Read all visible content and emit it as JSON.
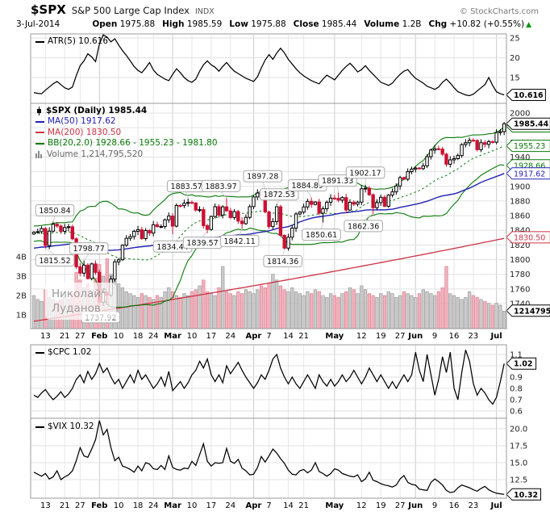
{
  "header": {
    "symbol": "$SPX",
    "name": "S&P 500 Large Cap Index",
    "exchange": "INDX",
    "copyright": "© StockCharts.com",
    "date": "3-Jul-2014",
    "quote": {
      "open_label": "Open",
      "open": "1975.88",
      "high_label": "High",
      "high": "1985.59",
      "low_label": "Low",
      "low": "1975.88",
      "close_label": "Close",
      "close": "1985.44",
      "volume_label": "Volume",
      "volume": "1.2B",
      "chg_label": "Chg",
      "chg": "+10.82 (+0.55%)",
      "arrow": "▲"
    }
  },
  "legend": {
    "atr": "ATR(5) 10.616",
    "spx": "$SPX (Daily) 1985.44",
    "ma50": "MA(50) 1917.62",
    "ma200": "MA(200) 1830.50",
    "bb": "BB(20,2.0) 1928.66 - 1955.23 - 1981.80",
    "volume": "Volume 1,214,795,520",
    "cpc": "$CPC 1.02",
    "vix": "$VIX 10.32"
  },
  "watermark": {
    "line1": "Николай",
    "sup": "©",
    "line2": "Луданов"
  },
  "colors": {
    "text": "#000000",
    "up": "#000000",
    "up_fill": "#ffffff",
    "down": "#cc1133",
    "ma50": "#2121b4",
    "ma200": "#cc3344",
    "bb": "#0a7a0a",
    "volume_up": "#cbcbcb",
    "volume_up_border": "#9e9e9e",
    "volume_down": "#f2b0ba",
    "volume_down_border": "#dd8899",
    "grid": "#e7e7e7",
    "grid_month": "#cccccc",
    "border": "#999999",
    "legend_volume": "#666666",
    "watermark": "#9a9a9a",
    "chg_arrow": "#009900"
  },
  "xticks": [
    {
      "label": "13",
      "i": 3
    },
    {
      "label": "21",
      "i": 8
    },
    {
      "label": "27",
      "i": 12
    },
    {
      "label": "Feb",
      "i": 17,
      "bold": true
    },
    {
      "label": "10",
      "i": 22
    },
    {
      "label": "18",
      "i": 27
    },
    {
      "label": "24",
      "i": 31
    },
    {
      "label": "Mar",
      "i": 36,
      "bold": true
    },
    {
      "label": "10",
      "i": 41
    },
    {
      "label": "17",
      "i": 46
    },
    {
      "label": "24",
      "i": 51
    },
    {
      "label": "Apr",
      "i": 57,
      "bold": true
    },
    {
      "label": "7",
      "i": 61
    },
    {
      "label": "14",
      "i": 66
    },
    {
      "label": "21",
      "i": 70
    },
    {
      "label": "May",
      "i": 78,
      "bold": true
    },
    {
      "label": "12",
      "i": 85
    },
    {
      "label": "19",
      "i": 90
    },
    {
      "label": "27",
      "i": 95
    },
    {
      "label": "Jun",
      "i": 99,
      "bold": true
    },
    {
      "label": "9",
      "i": 104
    },
    {
      "label": "16",
      "i": 109
    },
    {
      "label": "23",
      "i": 114
    },
    {
      "label": "Jul",
      "i": 120,
      "bold": true
    }
  ],
  "chart_data": [
    {
      "panel": "ATR",
      "type": "line",
      "title": "ATR(5)",
      "last": 10.616,
      "yticks": [
        15,
        20,
        25
      ],
      "ylim": [
        8.5,
        26.3
      ],
      "legend_position": "top-left",
      "values": [
        11.2,
        11.0,
        10.9,
        11.8,
        12.6,
        13.4,
        14.0,
        13.2,
        12.4,
        12.0,
        12.6,
        15.5,
        18.0,
        19.2,
        21.0,
        20.2,
        19.0,
        23.5,
        26.3,
        25.2,
        24.0,
        24.8,
        23.2,
        21.8,
        20.6,
        19.2,
        17.8,
        16.8,
        16.2,
        17.4,
        18.8,
        16.9,
        15.8,
        15.2,
        14.6,
        14.2,
        15.8,
        17.2,
        16.2,
        15.0,
        14.2,
        13.8,
        14.6,
        16.6,
        18.2,
        19.2,
        18.2,
        17.6,
        16.6,
        17.8,
        18.8,
        17.6,
        16.6,
        16.0,
        15.4,
        14.8,
        14.4,
        14.0,
        15.2,
        17.4,
        19.4,
        20.8,
        19.6,
        21.2,
        22.4,
        21.2,
        19.6,
        18.4,
        17.2,
        16.2,
        15.4,
        14.8,
        14.2,
        13.8,
        13.4,
        14.6,
        15.6,
        15.0,
        14.4,
        15.6,
        16.8,
        17.8,
        18.6,
        17.6,
        16.4,
        17.0,
        18.0,
        16.8,
        15.8,
        14.8,
        13.8,
        13.4,
        13.0,
        13.6,
        14.8,
        15.8,
        16.6,
        17.0,
        15.8,
        14.8,
        14.2,
        13.6,
        12.8,
        12.4,
        12.0,
        12.6,
        13.8,
        14.6,
        13.6,
        12.4,
        11.4,
        11.0,
        10.6,
        10.4,
        10.8,
        11.6,
        12.4,
        13.2,
        15.0,
        13.0,
        11.4,
        10.9,
        10.616
      ]
    },
    {
      "panel": "$SPX Daily",
      "type": "candlestick",
      "title": "$SPX (Daily)",
      "last": 1985.44,
      "yticks": [
        1740,
        1760,
        1780,
        1800,
        1820,
        1840,
        1860,
        1880,
        1900,
        1920,
        1940,
        1960,
        1980,
        2000
      ],
      "ylim": [
        1706,
        2013
      ],
      "closes": [
        1837.49,
        1838.13,
        1842.37,
        1819.2,
        1838.88,
        1848.38,
        1845.89,
        1838.7,
        1843.8,
        1844.86,
        1828.46,
        1790.29,
        1781.56,
        1792.5,
        1774.2,
        1794.19,
        1782.59,
        1741.89,
        1755.2,
        1751.64,
        1773.43,
        1797.02,
        1799.84,
        1819.75,
        1829.08,
        1831.5,
        1838.63,
        1840.76,
        1828.75,
        1839.78,
        1836.25,
        1847.61,
        1845.12,
        1845.16,
        1854.29,
        1859.45,
        1845.73,
        1873.91,
        1873.81,
        1877.03,
        1878.04,
        1877.17,
        1867.63,
        1868.2,
        1846.34,
        1841.13,
        1858.83,
        1872.25,
        1860.77,
        1872.01,
        1866.52,
        1857.44,
        1865.62,
        1852.56,
        1849.04,
        1857.62,
        1872.34,
        1885.52,
        1890.9,
        1888.77,
        1865.09,
        1845.04,
        1851.96,
        1872.18,
        1833.08,
        1815.69,
        1830.61,
        1842.98,
        1862.31,
        1864.85,
        1871.89,
        1879.55,
        1875.39,
        1878.61,
        1863.4,
        1869.43,
        1878.33,
        1883.95,
        1883.68,
        1881.14,
        1884.66,
        1867.72,
        1878.21,
        1875.63,
        1878.48,
        1896.65,
        1897.45,
        1888.53,
        1870.85,
        1877.86,
        1885.08,
        1872.83,
        1888.03,
        1892.49,
        1900.53,
        1911.91,
        1909.78,
        1920.03,
        1923.57,
        1924.97,
        1924.24,
        1927.88,
        1940.46,
        1949.44,
        1951.27,
        1950.79,
        1943.89,
        1930.11,
        1936.16,
        1937.78,
        1941.99,
        1956.98,
        1959.48,
        1962.87,
        1962.61,
        1949.98,
        1959.53,
        1957.22,
        1960.96,
        1960.23,
        1973.32,
        1974.62,
        1985.44
      ],
      "volumes_billions": [
        2.0,
        1.8,
        1.7,
        2.3,
        1.9,
        1.8,
        1.7,
        1.8,
        1.9,
        1.8,
        2.1,
        3.2,
        2.8,
        2.4,
        2.6,
        2.3,
        2.9,
        3.6,
        3.0,
        3.9,
        3.1,
        2.8,
        2.6,
        2.4,
        2.2,
        2.1,
        2.0,
        1.9,
        2.1,
        2.0,
        1.9,
        1.8,
        2.0,
        1.9,
        2.2,
        2.4,
        2.2,
        2.0,
        1.9,
        2.1,
        2.0,
        2.2,
        2.3,
        2.5,
        2.8,
        2.2,
        2.1,
        2.0,
        2.4,
        3.5,
        2.2,
        2.1,
        2.0,
        2.2,
        2.1,
        2.3,
        2.2,
        2.1,
        2.3,
        2.5,
        2.4,
        2.6,
        3.1,
        2.8,
        2.5,
        2.3,
        2.2,
        2.4,
        2.2,
        2.1,
        2.0,
        2.2,
        2.1,
        2.3,
        2.2,
        2.0,
        1.9,
        2.1,
        2.0,
        1.9,
        2.1,
        2.2,
        2.4,
        2.3,
        2.1,
        2.5,
        2.3,
        2.1,
        2.0,
        1.9,
        2.1,
        2.0,
        2.2,
        2.1,
        1.9,
        2.0,
        2.2,
        2.1,
        2.0,
        1.9,
        2.1,
        2.3,
        2.2,
        2.1,
        2.0,
        2.2,
        2.4,
        3.5,
        2.1,
        2.0,
        1.9,
        1.8,
        1.9,
        2.2,
        2.0,
        1.9,
        1.8,
        1.7,
        1.6,
        1.5,
        1.6,
        1.5,
        1.2
      ],
      "volume_axis": {
        "labels": [
          "1B",
          "2B",
          "3B",
          "4B"
        ],
        "values": [
          1,
          2,
          3,
          4
        ],
        "last_label": "1214795",
        "last_value": 1.2147955
      },
      "overlays": [
        {
          "name": "MA(50)",
          "last": 1917.62,
          "color_key": "ma50"
        },
        {
          "name": "MA(200)",
          "last": 1830.5,
          "color_key": "ma200"
        },
        {
          "name": "BB(20,2.0)",
          "lower": 1928.66,
          "mid": 1955.23,
          "upper": 1981.8,
          "color_key": "bb"
        }
      ],
      "annotations": [
        {
          "text": "1850.84",
          "value": 1850.84,
          "i": 5,
          "side": "above",
          "dx": -6
        },
        {
          "text": "1815.52",
          "value": 1815.52,
          "i": 3,
          "side": "below",
          "dx": 8
        },
        {
          "text": "1798.77",
          "value": 1798.77,
          "i": 13,
          "side": "above",
          "dx": 6
        },
        {
          "text": "1737.92",
          "value": 1737.92,
          "i": 19,
          "side": "below",
          "dx": -8
        },
        {
          "text": "1834.44",
          "value": 1834.44,
          "i": 36,
          "side": "below",
          "dx": 0
        },
        {
          "text": "1883.57",
          "value": 1883.57,
          "i": 40,
          "side": "above",
          "dx": -2
        },
        {
          "text": "1839.57",
          "value": 1839.57,
          "i": 45,
          "side": "below",
          "dx": -6
        },
        {
          "text": "1883.97",
          "value": 1883.97,
          "i": 50,
          "side": "above",
          "dx": -7
        },
        {
          "text": "1842.11",
          "value": 1842.11,
          "i": 54,
          "side": "below",
          "dx": -3
        },
        {
          "text": "1897.28",
          "value": 1897.28,
          "i": 60,
          "side": "above",
          "dx": -3
        },
        {
          "text": "1872.53",
          "value": 1872.53,
          "i": 63,
          "side": "above",
          "dx": 3
        },
        {
          "text": "1814.36",
          "value": 1814.36,
          "i": 65,
          "side": "below",
          "dx": -2
        },
        {
          "text": "1884.89",
          "value": 1884.89,
          "i": 72,
          "side": "above",
          "dx": -5
        },
        {
          "text": "1850.61",
          "value": 1850.61,
          "i": 75,
          "side": "below",
          "dx": -2
        },
        {
          "text": "1891.33",
          "value": 1891.33,
          "i": 79,
          "side": "above",
          "dx": -1
        },
        {
          "text": "1902.17",
          "value": 1902.17,
          "i": 86,
          "side": "above",
          "dx": 0
        },
        {
          "text": "1862.36",
          "value": 1862.36,
          "i": 88,
          "side": "below",
          "dx": -12
        }
      ],
      "callouts": [
        {
          "text": "1981.80",
          "value": 1981.8,
          "color_key": "bb"
        },
        {
          "text": "1955.23",
          "value": 1955.23,
          "color_key": "bb"
        },
        {
          "text": "1928.66",
          "value": 1928.66,
          "color_key": "bb"
        },
        {
          "text": "1917.62",
          "value": 1917.62,
          "color_key": "ma50"
        },
        {
          "text": "1830.50",
          "value": 1830.5,
          "color_key": "ma200"
        },
        {
          "text": "1214795",
          "volume_value": 1.2147955,
          "color_key": "text",
          "bold": true
        },
        {
          "text": "1985.44",
          "value": 1985.44,
          "color_key": "text",
          "bold": true
        }
      ]
    },
    {
      "panel": "CPC",
      "type": "line",
      "title": "$CPC",
      "last": 1.02,
      "yticks": [
        0.6,
        0.7,
        0.8,
        0.9,
        1.0,
        1.1
      ],
      "ylim": [
        0.54,
        1.18
      ],
      "values": [
        0.74,
        0.72,
        0.76,
        0.79,
        0.74,
        0.7,
        0.73,
        0.77,
        0.72,
        0.75,
        0.8,
        0.88,
        0.92,
        0.85,
        0.95,
        0.88,
        0.93,
        1.02,
        0.94,
        0.98,
        0.9,
        0.84,
        0.88,
        0.8,
        0.86,
        0.92,
        0.85,
        0.96,
        0.88,
        0.92,
        0.86,
        0.8,
        0.84,
        0.9,
        0.82,
        0.95,
        0.78,
        0.82,
        0.86,
        0.8,
        0.85,
        0.92,
        0.96,
        1.04,
        0.98,
        1.06,
        0.92,
        0.86,
        0.92,
        0.85,
        1.0,
        0.93,
        0.98,
        1.03,
        0.96,
        0.9,
        0.85,
        0.8,
        0.85,
        0.92,
        0.88,
        0.96,
        1.06,
        1.1,
        0.98,
        0.9,
        0.84,
        0.9,
        0.84,
        0.8,
        0.86,
        0.92,
        0.86,
        0.8,
        0.92,
        0.86,
        0.82,
        0.88,
        0.82,
        0.86,
        0.92,
        0.86,
        0.9,
        0.96,
        0.9,
        0.84,
        0.9,
        0.98,
        0.92,
        0.86,
        0.92,
        0.86,
        0.8,
        0.86,
        0.8,
        0.86,
        0.92,
        0.86,
        0.92,
        1.12,
        0.96,
        0.86,
        1.1,
        0.92,
        0.74,
        0.88,
        1.08,
        0.94,
        1.12,
        0.8,
        0.7,
        0.94,
        1.14,
        1.04,
        0.84,
        0.74,
        0.8,
        0.76,
        0.7,
        0.66,
        0.72,
        0.86,
        1.02
      ]
    },
    {
      "panel": "VIX",
      "type": "line",
      "title": "$VIX",
      "last": 10.32,
      "yticks": [
        12.5,
        15.0,
        17.5,
        20.0
      ],
      "ylim": [
        9.8,
        21.6
      ],
      "values": [
        13.6,
        13.3,
        13.0,
        13.4,
        12.6,
        12.9,
        13.8,
        12.5,
        12.9,
        13.2,
        13.8,
        15.3,
        17.2,
        16.0,
        15.8,
        17.0,
        18.4,
        21.2,
        19.1,
        19.9,
        17.2,
        15.3,
        15.8,
        14.5,
        14.3,
        14.0,
        13.6,
        14.5,
        13.8,
        15.0,
        14.8,
        14.1,
        14.0,
        14.6,
        14.0,
        16.0,
        14.3,
        14.0,
        13.9,
        14.2,
        14.1,
        15.2,
        14.6,
        16.2,
        17.8,
        15.2,
        14.5,
        15.0,
        14.9,
        15.0,
        17.1,
        15.2,
        14.9,
        15.5,
        14.2,
        13.8,
        13.2,
        13.3,
        14.3,
        15.9,
        15.1,
        16.0,
        17.0,
        16.4,
        15.6,
        14.9,
        13.9,
        13.3,
        13.2,
        13.8,
        14.0,
        13.5,
        13.9,
        15.0,
        13.7,
        13.4,
        13.0,
        13.4,
        14.1,
        13.9,
        13.4,
        13.2,
        13.0,
        12.9,
        13.2,
        12.2,
        12.6,
        13.6,
        12.4,
        12.2,
        11.9,
        11.7,
        11.6,
        11.4,
        11.7,
        12.6,
        13.1,
        12.1,
        11.8,
        11.7,
        11.1,
        11.0,
        10.9,
        12.1,
        12.6,
        12.2,
        11.7,
        10.9,
        10.6,
        10.7,
        11.3,
        11.7,
        11.5,
        11.3,
        11.0,
        10.8,
        11.2,
        11.5,
        11.0,
        10.7,
        10.5,
        10.4,
        10.32
      ]
    }
  ]
}
